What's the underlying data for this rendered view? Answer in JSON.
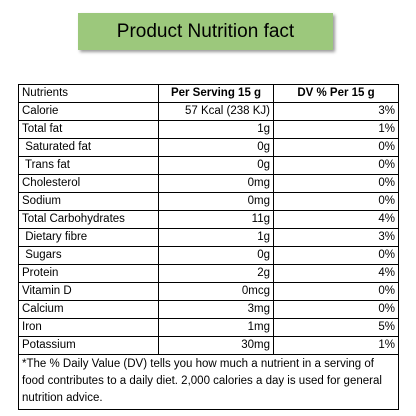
{
  "header": {
    "title": "Product Nutrition fact"
  },
  "table": {
    "columns": [
      "Nutrients",
      "Per Serving 15 g",
      "DV % Per 15 g"
    ],
    "rows": [
      [
        "Calorie",
        "57 Kcal (238 KJ)",
        "3%"
      ],
      [
        "Total fat",
        "1g",
        "1%"
      ],
      [
        " Saturated fat",
        "0g",
        "0%"
      ],
      [
        " Trans fat",
        "0g",
        "0%"
      ],
      [
        "Cholesterol",
        "0mg",
        "0%"
      ],
      [
        "Sodium",
        "0mg",
        "0%"
      ],
      [
        "Total Carbohydrates",
        "11g",
        "4%"
      ],
      [
        " Dietary fibre",
        "1g",
        "3%"
      ],
      [
        " Sugars",
        "0g",
        "0%"
      ],
      [
        "Protein",
        "2g",
        "4%"
      ],
      [
        "Vitamin D",
        "0mcg",
        "0%"
      ],
      [
        "Calcium",
        "3mg",
        "0%"
      ],
      [
        "Iron",
        "1mg",
        "5%"
      ],
      [
        "Potassium",
        "30mg",
        "1%"
      ]
    ],
    "footnote": "*The % Daily Value (DV) tells you how much a nutrient in a serving of food contributes to a daily diet. 2,000 calories a day is used for general nutrition advice."
  }
}
